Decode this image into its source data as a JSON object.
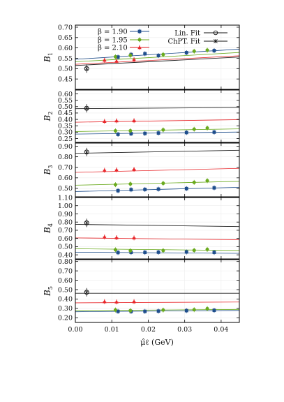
{
  "colors": {
    "beta190": "#1f4e8c",
    "beta195": "#6aaa1e",
    "beta210": "#e8262a",
    "fit": "#222222",
    "axis": "#000000"
  },
  "chart_data": {
    "type": "scatter",
    "xlabel": "μ̂ℓ (GeV)",
    "xlim": [
      0.0,
      0.045
    ],
    "xticks": [
      "0.00",
      "0.01",
      "0.02",
      "0.03",
      "0.04"
    ],
    "xtick_values": [
      0.0,
      0.01,
      0.02,
      0.03,
      0.04
    ],
    "legend": {
      "placement": "top",
      "entries": [
        {
          "key": "beta190",
          "label": "β = 1.90",
          "marker": "square"
        },
        {
          "key": "beta195",
          "label": "β = 1.95",
          "marker": "circle"
        },
        {
          "key": "beta210",
          "label": "β = 2.10",
          "marker": "triangle"
        },
        {
          "key": "linfit",
          "label": "Lin. Fit",
          "marker": "open-circle"
        },
        {
          "key": "chptfit",
          "label": "ChPT. Fit",
          "marker": "star"
        }
      ]
    },
    "panels": [
      {
        "ylabel": "B",
        "ylabel_sub": "1",
        "ylim": [
          0.4,
          0.71
        ],
        "yticks": [
          "0.45",
          "0.50",
          "0.55",
          "0.60",
          "0.65",
          "0.70"
        ],
        "ytick_values": [
          0.45,
          0.5,
          0.55,
          0.6,
          0.65,
          0.7
        ],
        "series": [
          {
            "key": "beta190",
            "points": [
              [
                0.0117,
                0.556
              ],
              [
                0.0153,
                0.568
              ],
              [
                0.0191,
                0.572
              ],
              [
                0.0228,
                0.563
              ],
              [
                0.0305,
                0.577
              ],
              [
                0.0381,
                0.587
              ]
            ],
            "fit": [
              0.545,
              0.594
            ]
          },
          {
            "key": "beta195",
            "points": [
              [
                0.011,
                0.557
              ],
              [
                0.0151,
                0.564
              ],
              [
                0.0241,
                0.568
              ],
              [
                0.0326,
                0.584
              ],
              [
                0.0362,
                0.589
              ]
            ],
            "fit": [
              0.533,
              0.578
            ]
          },
          {
            "key": "beta210",
            "points": [
              [
                0.008,
                0.541
              ],
              [
                0.0113,
                0.536
              ],
              [
                0.0161,
                0.543
              ]
            ],
            "fit": [
              0.521,
              0.562
            ]
          }
        ],
        "extrap": {
          "x": 0.0031,
          "y": 0.5
        },
        "global_fit": [
          0.515,
          0.556
        ]
      },
      {
        "ylabel": "B",
        "ylabel_sub": "2",
        "ylim": [
          0.22,
          0.63
        ],
        "yticks": [
          "0.25",
          "0.30",
          "0.35",
          "0.40",
          "0.45",
          "0.50",
          "0.55",
          "0.60"
        ],
        "ytick_values": [
          0.25,
          0.3,
          0.35,
          0.4,
          0.45,
          0.5,
          0.55,
          0.6
        ],
        "series": [
          {
            "key": "beta190",
            "points": [
              [
                0.0117,
                0.283
              ],
              [
                0.0153,
                0.288
              ],
              [
                0.0191,
                0.29
              ],
              [
                0.0228,
                0.293
              ],
              [
                0.0305,
                0.297
              ],
              [
                0.0381,
                0.3
              ]
            ],
            "fit": [
              0.285,
              0.301
            ]
          },
          {
            "key": "beta195",
            "points": [
              [
                0.011,
                0.31
              ],
              [
                0.0151,
                0.311
              ],
              [
                0.0241,
                0.318
              ],
              [
                0.0326,
                0.323
              ],
              [
                0.0362,
                0.332
              ]
            ],
            "fit": [
              0.305,
              0.326
            ]
          },
          {
            "key": "beta210",
            "points": [
              [
                0.008,
                0.385
              ],
              [
                0.0113,
                0.389
              ],
              [
                0.0161,
                0.39
              ]
            ],
            "fit": [
              0.378,
              0.398
            ]
          }
        ],
        "extrap": {
          "x": 0.0031,
          "y": 0.487
        },
        "global_fit": [
          0.484,
          0.493
        ]
      },
      {
        "ylabel": "B",
        "ylabel_sub": "3",
        "ylim": [
          0.42,
          0.93
        ],
        "yticks": [
          "0.50",
          "0.60",
          "0.70",
          "0.80",
          "0.90"
        ],
        "ytick_values": [
          0.5,
          0.6,
          0.7,
          0.8,
          0.9
        ],
        "series": [
          {
            "key": "beta190",
            "points": [
              [
                0.0117,
                0.478
              ],
              [
                0.0153,
                0.488
              ],
              [
                0.0191,
                0.49
              ],
              [
                0.0228,
                0.493
              ],
              [
                0.0305,
                0.498
              ],
              [
                0.0381,
                0.505
              ]
            ],
            "fit": [
              0.47,
              0.51
            ]
          },
          {
            "key": "beta195",
            "points": [
              [
                0.011,
                0.535
              ],
              [
                0.0151,
                0.542
              ],
              [
                0.0241,
                0.548
              ],
              [
                0.0326,
                0.557
              ],
              [
                0.0362,
                0.573
              ]
            ],
            "fit": [
              0.53,
              0.567
            ]
          },
          {
            "key": "beta210",
            "points": [
              [
                0.008,
                0.672
              ],
              [
                0.0113,
                0.676
              ],
              [
                0.0161,
                0.681
              ]
            ],
            "fit": [
              0.652,
              0.69
            ]
          }
        ],
        "extrap": {
          "x": 0.0031,
          "y": 0.845
        },
        "global_fit": [
          0.833,
          0.862
        ]
      },
      {
        "ylabel": "B",
        "ylabel_sub": "4",
        "ylim": [
          0.35,
          1.1
        ],
        "yticks": [
          "0.40",
          "0.50",
          "0.60",
          "0.70",
          "0.80",
          "0.90",
          "1.00",
          "1.10"
        ],
        "ytick_values": [
          0.4,
          0.5,
          0.6,
          0.7,
          0.8,
          0.9,
          1.0,
          1.1
        ],
        "series": [
          {
            "key": "beta190",
            "points": [
              [
                0.0117,
                0.428
              ],
              [
                0.0153,
                0.43
              ],
              [
                0.0191,
                0.43
              ],
              [
                0.0228,
                0.432
              ],
              [
                0.0305,
                0.435
              ],
              [
                0.0381,
                0.43
              ]
            ],
            "fit": [
              0.432,
              0.418
            ]
          },
          {
            "key": "beta195",
            "points": [
              [
                0.011,
                0.462
              ],
              [
                0.0151,
                0.45
              ],
              [
                0.0241,
                0.452
              ],
              [
                0.0326,
                0.455
              ],
              [
                0.0362,
                0.466
              ]
            ],
            "fit": [
              0.474,
              0.453
            ]
          },
          {
            "key": "beta210",
            "points": [
              [
                0.008,
                0.618
              ],
              [
                0.0113,
                0.61
              ],
              [
                0.0161,
                0.607
              ]
            ],
            "fit": [
              0.607,
              0.584
            ]
          }
        ],
        "extrap": {
          "x": 0.0031,
          "y": 0.79
        },
        "global_fit": [
          0.772,
          0.745
        ]
      },
      {
        "ylabel": "B",
        "ylabel_sub": "5",
        "ylim": [
          0.15,
          0.82
        ],
        "yticks": [
          "0.20",
          "0.30",
          "0.40",
          "0.50",
          "0.60",
          "0.70",
          "0.80"
        ],
        "ytick_values": [
          0.2,
          0.3,
          0.4,
          0.5,
          0.6,
          0.7,
          0.8
        ],
        "series": [
          {
            "key": "beta190",
            "points": [
              [
                0.0117,
                0.268
              ],
              [
                0.0153,
                0.267
              ],
              [
                0.0191,
                0.268
              ],
              [
                0.0228,
                0.271
              ],
              [
                0.0305,
                0.276
              ],
              [
                0.0381,
                0.279
              ]
            ],
            "fit": [
              0.264,
              0.278
            ]
          },
          {
            "key": "beta195",
            "points": [
              [
                0.011,
                0.283
              ],
              [
                0.0151,
                0.276
              ],
              [
                0.0241,
                0.282
              ],
              [
                0.0326,
                0.286
              ],
              [
                0.0362,
                0.297
              ]
            ],
            "fit": [
              0.276,
              0.289
            ]
          },
          {
            "key": "beta210",
            "points": [
              [
                0.008,
                0.372
              ],
              [
                0.0113,
                0.369
              ],
              [
                0.0161,
                0.372
              ]
            ],
            "fit": [
              0.359,
              0.368
            ]
          }
        ],
        "extrap": {
          "x": 0.0031,
          "y": 0.472
        },
        "global_fit": [
          0.461,
          0.461
        ]
      }
    ]
  }
}
